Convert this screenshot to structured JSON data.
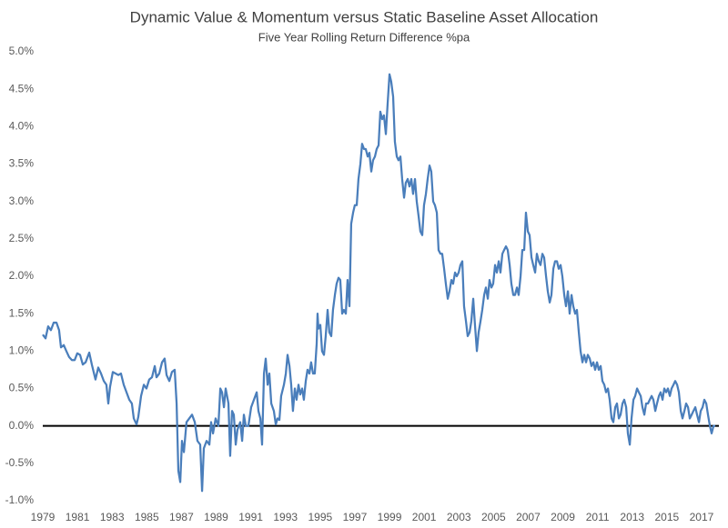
{
  "chart_data": {
    "type": "line",
    "title": "Dynamic Value & Momentum versus Static Baseline Asset Allocation",
    "subtitle": "Five Year Rolling Return Difference %pa",
    "color": "#4a7ebb",
    "xlim": [
      1979,
      2018
    ],
    "xticks": [
      1979,
      1981,
      1983,
      1985,
      1987,
      1989,
      1991,
      1993,
      1995,
      1997,
      1999,
      2001,
      2003,
      2005,
      2007,
      2009,
      2011,
      2013,
      2015,
      2017
    ],
    "ylim": [
      -1,
      5
    ],
    "yticks": [
      {
        "value": -1,
        "label": "-1.0%"
      },
      {
        "value": -0.5,
        "label": "-0.5%"
      },
      {
        "value": 0,
        "label": "0.0%"
      },
      {
        "value": 0.5,
        "label": "0.5%"
      },
      {
        "value": 1,
        "label": "1.0%"
      },
      {
        "value": 1.5,
        "label": "1.5%"
      },
      {
        "value": 2,
        "label": "2.0%"
      },
      {
        "value": 2.5,
        "label": "2.5%"
      },
      {
        "value": 3,
        "label": "3.0%"
      },
      {
        "value": 3.5,
        "label": "3.5%"
      },
      {
        "value": 4,
        "label": "4.0%"
      },
      {
        "value": 4.5,
        "label": "4.5%"
      },
      {
        "value": 5,
        "label": "5.0%"
      }
    ],
    "grid": false,
    "x": [
      1979.0,
      1979.16,
      1979.31,
      1979.47,
      1979.63,
      1979.79,
      1979.94,
      1980.05,
      1980.21,
      1980.36,
      1980.52,
      1980.68,
      1980.84,
      1980.99,
      1981.15,
      1981.31,
      1981.47,
      1981.68,
      1981.83,
      1982.04,
      1982.2,
      1982.36,
      1982.52,
      1982.67,
      1982.78,
      1982.88,
      1983.04,
      1983.2,
      1983.36,
      1983.51,
      1983.67,
      1983.83,
      1983.99,
      1984.14,
      1984.25,
      1984.41,
      1984.51,
      1984.67,
      1984.83,
      1984.98,
      1985.14,
      1985.3,
      1985.46,
      1985.56,
      1985.72,
      1985.88,
      1986.03,
      1986.14,
      1986.3,
      1986.45,
      1986.61,
      1986.72,
      1986.82,
      1986.93,
      1987.03,
      1987.14,
      1987.29,
      1987.45,
      1987.61,
      1987.77,
      1987.92,
      1988.08,
      1988.19,
      1988.29,
      1988.45,
      1988.61,
      1988.71,
      1988.82,
      1988.97,
      1989.13,
      1989.24,
      1989.34,
      1989.45,
      1989.55,
      1989.71,
      1989.81,
      1989.92,
      1990.02,
      1990.13,
      1990.23,
      1990.39,
      1990.5,
      1990.6,
      1990.71,
      1990.86,
      1991.02,
      1991.18,
      1991.34,
      1991.44,
      1991.55,
      1991.65,
      1991.76,
      1991.86,
      1991.97,
      1992.07,
      1992.18,
      1992.33,
      1992.44,
      1992.54,
      1992.65,
      1992.75,
      1992.91,
      1993.02,
      1993.12,
      1993.23,
      1993.33,
      1993.43,
      1993.54,
      1993.64,
      1993.75,
      1993.85,
      1993.96,
      1994.06,
      1994.17,
      1994.27,
      1994.38,
      1994.48,
      1994.59,
      1994.69,
      1994.8,
      1994.85,
      1994.9,
      1995.01,
      1995.11,
      1995.22,
      1995.32,
      1995.43,
      1995.53,
      1995.64,
      1995.74,
      1995.85,
      1995.95,
      1996.06,
      1996.16,
      1996.27,
      1996.37,
      1996.48,
      1996.58,
      1996.69,
      1996.79,
      1996.9,
      1997.0,
      1997.11,
      1997.21,
      1997.32,
      1997.42,
      1997.53,
      1997.63,
      1997.74,
      1997.84,
      1997.95,
      1998.05,
      1998.16,
      1998.26,
      1998.37,
      1998.47,
      1998.58,
      1998.68,
      1998.79,
      1998.89,
      1999.0,
      1999.1,
      1999.21,
      1999.31,
      1999.42,
      1999.52,
      1999.63,
      1999.73,
      1999.84,
      1999.94,
      2000.05,
      2000.15,
      2000.26,
      2000.36,
      2000.47,
      2000.57,
      2000.68,
      2000.78,
      2000.89,
      2000.99,
      2001.1,
      2001.2,
      2001.31,
      2001.41,
      2001.52,
      2001.62,
      2001.73,
      2001.83,
      2001.94,
      2002.04,
      2002.15,
      2002.25,
      2002.36,
      2002.46,
      2002.57,
      2002.67,
      2002.78,
      2002.88,
      2002.99,
      2003.09,
      2003.2,
      2003.3,
      2003.41,
      2003.51,
      2003.62,
      2003.72,
      2003.83,
      2003.93,
      2004.04,
      2004.14,
      2004.25,
      2004.35,
      2004.46,
      2004.56,
      2004.67,
      2004.77,
      2004.88,
      2004.98,
      2005.09,
      2005.19,
      2005.3,
      2005.4,
      2005.51,
      2005.61,
      2005.72,
      2005.82,
      2005.93,
      2006.03,
      2006.14,
      2006.24,
      2006.35,
      2006.45,
      2006.56,
      2006.66,
      2006.77,
      2006.87,
      2006.98,
      2007.08,
      2007.19,
      2007.29,
      2007.4,
      2007.5,
      2007.61,
      2007.71,
      2007.82,
      2007.92,
      2008.03,
      2008.13,
      2008.24,
      2008.34,
      2008.45,
      2008.55,
      2008.66,
      2008.76,
      2008.87,
      2008.97,
      2009.08,
      2009.18,
      2009.29,
      2009.39,
      2009.5,
      2009.6,
      2009.71,
      2009.81,
      2009.92,
      2010.02,
      2010.13,
      2010.23,
      2010.34,
      2010.44,
      2010.55,
      2010.65,
      2010.76,
      2010.86,
      2010.97,
      2011.07,
      2011.18,
      2011.28,
      2011.39,
      2011.49,
      2011.6,
      2011.7,
      2011.81,
      2011.91,
      2012.02,
      2012.12,
      2012.23,
      2012.33,
      2012.44,
      2012.54,
      2012.65,
      2012.75,
      2012.86,
      2012.96,
      2013.07,
      2013.17,
      2013.28,
      2013.38,
      2013.49,
      2013.59,
      2013.7,
      2013.8,
      2013.91,
      2014.01,
      2014.12,
      2014.22,
      2014.33,
      2014.43,
      2014.54,
      2014.64,
      2014.75,
      2014.85,
      2014.96,
      2015.06,
      2015.17,
      2015.27,
      2015.38,
      2015.48,
      2015.59,
      2015.69,
      2015.8,
      2015.9,
      2016.01,
      2016.11,
      2016.22,
      2016.32,
      2016.43,
      2016.53,
      2016.64,
      2016.74,
      2016.85,
      2016.95,
      2017.06,
      2017.16,
      2017.27,
      2017.37,
      2017.48,
      2017.58,
      2017.69,
      2017.79
    ],
    "values": [
      1.22,
      1.17,
      1.33,
      1.28,
      1.38,
      1.38,
      1.28,
      1.05,
      1.08,
      1.0,
      0.92,
      0.88,
      0.88,
      0.97,
      0.95,
      0.82,
      0.85,
      0.98,
      0.82,
      0.62,
      0.78,
      0.7,
      0.6,
      0.55,
      0.3,
      0.52,
      0.72,
      0.7,
      0.68,
      0.7,
      0.55,
      0.45,
      0.35,
      0.3,
      0.1,
      0.02,
      0.12,
      0.4,
      0.55,
      0.5,
      0.62,
      0.65,
      0.8,
      0.65,
      0.7,
      0.85,
      0.9,
      0.68,
      0.6,
      0.72,
      0.75,
      0.3,
      -0.6,
      -0.75,
      -0.2,
      -0.35,
      0.05,
      0.1,
      0.15,
      0.05,
      -0.2,
      -0.25,
      -0.87,
      -0.3,
      -0.2,
      -0.25,
      0.05,
      -0.1,
      0.1,
      0.0,
      0.5,
      0.45,
      0.25,
      0.5,
      0.3,
      -0.4,
      0.2,
      0.15,
      -0.25,
      -0.05,
      0.05,
      -0.2,
      0.15,
      0.0,
      0.0,
      0.25,
      0.35,
      0.45,
      0.2,
      0.1,
      -0.25,
      0.7,
      0.9,
      0.55,
      0.7,
      0.3,
      0.2,
      0.02,
      0.1,
      0.08,
      0.4,
      0.55,
      0.7,
      0.95,
      0.8,
      0.55,
      0.2,
      0.5,
      0.35,
      0.55,
      0.42,
      0.5,
      0.35,
      0.6,
      0.75,
      0.7,
      0.85,
      0.7,
      0.7,
      1.1,
      1.5,
      1.3,
      1.35,
      1.0,
      0.95,
      1.2,
      1.55,
      1.25,
      1.2,
      1.55,
      1.75,
      1.9,
      1.98,
      1.95,
      1.5,
      1.55,
      1.5,
      1.95,
      1.6,
      2.7,
      2.85,
      2.95,
      2.95,
      3.3,
      3.5,
      3.77,
      3.7,
      3.7,
      3.6,
      3.65,
      3.4,
      3.55,
      3.6,
      3.7,
      3.75,
      4.2,
      4.1,
      4.15,
      3.9,
      4.3,
      4.7,
      4.6,
      4.4,
      3.8,
      3.6,
      3.55,
      3.6,
      3.3,
      3.05,
      3.25,
      3.3,
      3.2,
      3.3,
      3.1,
      3.3,
      3.0,
      2.8,
      2.6,
      2.55,
      2.95,
      3.1,
      3.3,
      3.48,
      3.4,
      3.0,
      2.95,
      2.85,
      2.35,
      2.3,
      2.3,
      2.1,
      1.9,
      1.7,
      1.8,
      1.95,
      1.9,
      2.05,
      2.0,
      2.05,
      2.15,
      2.2,
      1.6,
      1.4,
      1.2,
      1.25,
      1.4,
      1.7,
      1.35,
      1.0,
      1.25,
      1.4,
      1.55,
      1.75,
      1.85,
      1.7,
      1.95,
      1.85,
      1.9,
      2.15,
      2.05,
      2.2,
      2.05,
      2.3,
      2.35,
      2.4,
      2.35,
      2.15,
      1.9,
      1.75,
      1.75,
      1.85,
      1.75,
      2.0,
      2.35,
      2.35,
      2.85,
      2.6,
      2.55,
      2.25,
      2.15,
      2.05,
      2.3,
      2.2,
      2.15,
      2.3,
      2.25,
      2.0,
      1.8,
      1.65,
      1.75,
      2.1,
      2.2,
      2.2,
      2.1,
      2.15,
      2.0,
      1.75,
      1.6,
      1.8,
      1.5,
      1.75,
      1.6,
      1.5,
      1.55,
      1.25,
      1.0,
      0.85,
      0.95,
      0.85,
      0.95,
      0.9,
      0.8,
      0.85,
      0.75,
      0.85,
      0.75,
      0.8,
      0.6,
      0.55,
      0.45,
      0.5,
      0.35,
      0.1,
      0.05,
      0.25,
      0.3,
      0.1,
      0.15,
      0.3,
      0.35,
      0.25,
      -0.1,
      -0.25,
      0.1,
      0.35,
      0.4,
      0.5,
      0.45,
      0.4,
      0.25,
      0.15,
      0.3,
      0.3,
      0.35,
      0.4,
      0.35,
      0.2,
      0.3,
      0.4,
      0.45,
      0.35,
      0.5,
      0.45,
      0.5,
      0.4,
      0.5,
      0.55,
      0.6,
      0.55,
      0.45,
      0.2,
      0.1,
      0.2,
      0.3,
      0.25,
      0.1,
      0.15,
      0.2,
      0.25,
      0.15,
      0.05,
      0.2,
      0.25,
      0.35,
      0.3,
      0.15,
      0.0,
      -0.1,
      0.0,
      0.0
    ]
  }
}
